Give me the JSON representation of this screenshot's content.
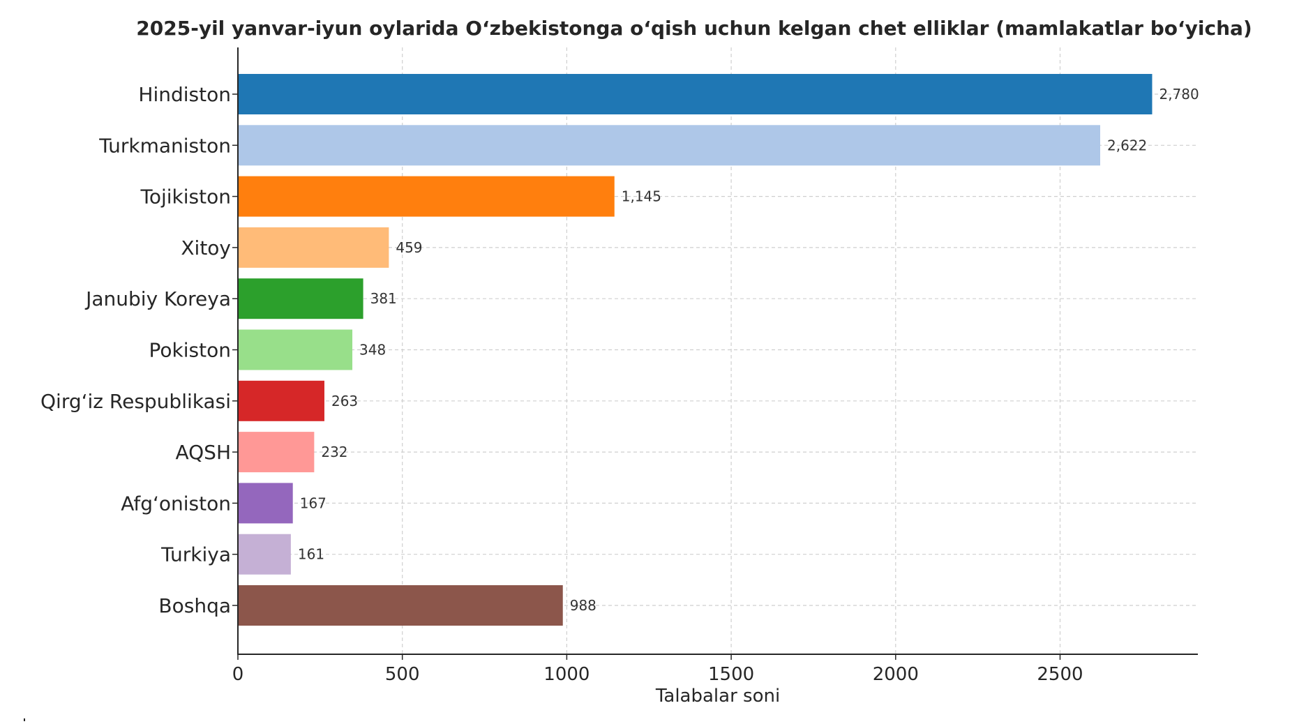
{
  "chart_data": {
    "type": "bar",
    "orientation": "horizontal",
    "title": "2025-yil yanvar-iyun oylarida O‘zbekistonga o‘qish uchun kelgan chet elliklar (mamlakatlar bo‘yicha)",
    "xlabel": "Talabalar soni",
    "ylabel": "",
    "xlim": [
      0,
      2919
    ],
    "xticks": [
      0,
      500,
      1000,
      1500,
      2000,
      2500
    ],
    "grid": true,
    "categories": [
      "Hindiston",
      "Turkmaniston",
      "Tojikiston",
      "Xitoy",
      "Janubiy Koreya",
      "Pokiston",
      "Qirg‘iz Respublikasi",
      "AQSH",
      "Afg‘oniston",
      "Turkiya",
      "Boshqa"
    ],
    "values": [
      2780,
      2622,
      1145,
      459,
      381,
      348,
      263,
      232,
      167,
      161,
      988
    ],
    "value_labels": [
      "2,780",
      "2,622",
      "1,145",
      "459",
      "381",
      "348",
      "263",
      "232",
      "167",
      "161",
      "988"
    ],
    "colors": [
      "#1f77b4",
      "#aec7e8",
      "#ff7f0e",
      "#ffbb78",
      "#2ca02c",
      "#98df8a",
      "#d62728",
      "#ff9896",
      "#9467bd",
      "#c5b0d5",
      "#8c564b"
    ]
  }
}
